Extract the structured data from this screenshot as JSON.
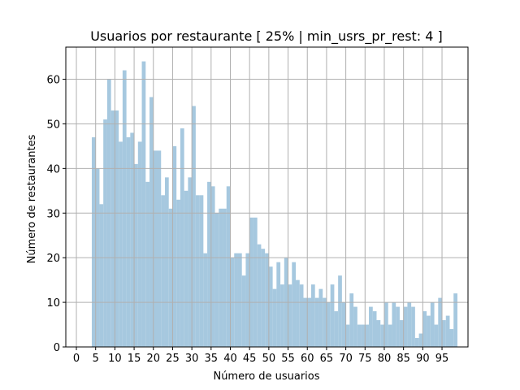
{
  "chart_data": {
    "type": "bar",
    "title": "Usuarios por restaurante [ 25% | min_usrs_pr_rest: 4 ]",
    "xlabel": "Número de usuarios",
    "ylabel": "Número de restaurantes",
    "xlim": [
      -2.75,
      101.75
    ],
    "ylim": [
      0,
      67.2
    ],
    "x_ticks": [
      0,
      5,
      10,
      15,
      20,
      25,
      30,
      35,
      40,
      45,
      50,
      55,
      60,
      65,
      70,
      75,
      80,
      85,
      90,
      95
    ],
    "y_ticks": [
      0,
      10,
      20,
      30,
      40,
      50,
      60
    ],
    "grid": true,
    "bar_color": "#a6c8df",
    "grid_color": "#b0b0b0",
    "bin_width": 1,
    "series": [
      {
        "x": [
          4,
          5,
          6,
          7,
          8,
          9,
          10,
          11,
          12,
          13,
          14,
          15,
          16,
          17,
          18,
          19,
          20,
          21,
          22,
          23,
          24,
          25,
          26,
          27,
          28,
          29,
          30,
          31,
          32,
          33,
          34,
          35,
          36,
          37,
          38,
          39,
          40,
          41,
          42,
          43,
          44,
          45,
          46,
          47,
          48,
          49,
          50,
          51,
          52,
          53,
          54,
          55,
          56,
          57,
          58,
          59,
          60,
          61,
          62,
          63,
          64,
          65,
          66,
          67,
          68,
          69,
          70,
          71,
          72,
          73,
          74,
          75,
          76,
          77,
          78,
          79,
          80,
          81,
          82,
          83,
          84,
          85,
          86,
          87,
          88,
          89,
          90,
          91,
          92,
          93,
          94,
          95,
          96,
          97,
          98
        ],
        "values": [
          47,
          40,
          32,
          51,
          60,
          53,
          53,
          46,
          62,
          47,
          48,
          41,
          46,
          64,
          37,
          56,
          44,
          44,
          34,
          38,
          31,
          45,
          33,
          49,
          35,
          38,
          54,
          34,
          34,
          21,
          37,
          36,
          30,
          31,
          31,
          36,
          20,
          21,
          21,
          16,
          21,
          29,
          29,
          23,
          22,
          21,
          18,
          13,
          19,
          14,
          20,
          14,
          19,
          15,
          14,
          11,
          11,
          14,
          11,
          13,
          11,
          10,
          14,
          8,
          16,
          10,
          5,
          12,
          9,
          5,
          5,
          5,
          9,
          8,
          6,
          5,
          10,
          5,
          10,
          9,
          6,
          9,
          10,
          9,
          2,
          3,
          8,
          7,
          10,
          5,
          11,
          6,
          7,
          4,
          12
        ]
      }
    ]
  }
}
